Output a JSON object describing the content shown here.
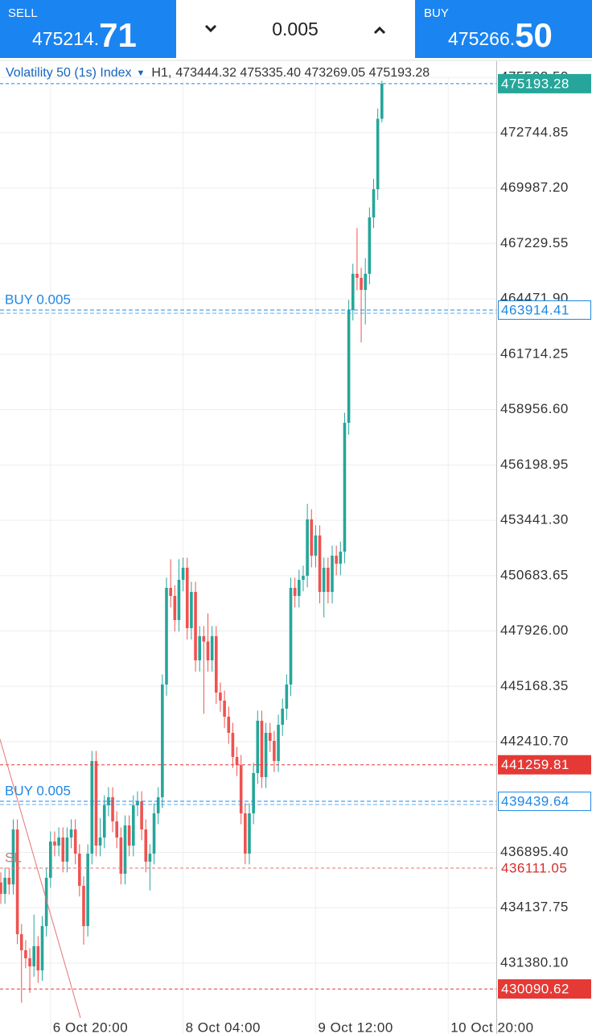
{
  "header": {
    "sell": {
      "label": "SELL",
      "price_main": "475214.",
      "price_decimals": "71"
    },
    "volume": "0.005",
    "buy": {
      "label": "BUY",
      "price_main": "475266.",
      "price_decimals": "50"
    }
  },
  "chart_data": {
    "type": "candlestick",
    "title": "Volatility 50 (1s) Index",
    "timeframe": "H1,",
    "ohlc_text": "473444.32 475335.40 473269.05 475193.28",
    "up_color": "#26a69a",
    "down_color": "#ef5350",
    "grid": true,
    "ylim": [
      428730,
      475510
    ],
    "yticks": [
      {
        "value": 475502.5,
        "label": "475502.50"
      },
      472744.85,
      {
        "value": 469987.2,
        "label": "469987.20"
      },
      467229.55,
      {
        "value": 464471.9,
        "label": "464471.90"
      },
      461714.25,
      {
        "value": 458956.6,
        "label": "458956.60"
      },
      456198.95,
      {
        "value": 453441.3,
        "label": "453441.30"
      },
      450683.65,
      {
        "value": 447926,
        "label": "447926.00"
      },
      445168.35,
      {
        "value": 442410.7,
        "label": "442410.70"
      },
      {
        "value": 436895.4,
        "label": "436895.40"
      },
      434137.75,
      {
        "value": 431380.1,
        "label": "431380.10"
      }
    ],
    "levels": [
      {
        "price": 475193.28,
        "color": "#26a69a",
        "line_color": "#1e88e5",
        "box": "filled"
      },
      {
        "label": "BUY 0.005",
        "price": 463914.41,
        "color": "#1e88e5",
        "line_color": "#1e88e5",
        "box": "outline"
      },
      {
        "price": 441259.81,
        "color": "#e53935",
        "line_color": "#e53935",
        "box": "filled"
      },
      {
        "label": "BUY 0.005",
        "price": 439439.64,
        "color": "#1e88e5",
        "line_color": "#1e88e5",
        "box": "outline"
      },
      {
        "label": "SL",
        "price": 436111.05,
        "color": "#d32f2f",
        "line_color": "#e57373",
        "box": "none"
      },
      {
        "price": 430090.62,
        "color": "#e53935",
        "line_color": "#e53935",
        "box": "filled"
      }
    ],
    "categories": [
      null,
      null,
      null,
      null,
      null,
      null,
      null,
      null,
      null,
      null,
      null,
      null,
      "6 Oct 20:00",
      null,
      null,
      null,
      null,
      null,
      null,
      null,
      null,
      null,
      null,
      null,
      null,
      null,
      null,
      null,
      null,
      null,
      null,
      null,
      null,
      null,
      null,
      null,
      null,
      null,
      null,
      null,
      null,
      null,
      null,
      null,
      "8 Oct 04:00",
      null,
      null,
      null,
      null,
      null,
      null,
      null,
      null,
      null,
      null,
      null,
      null,
      null,
      null,
      null,
      null,
      null,
      null,
      null,
      null,
      null,
      null,
      null,
      null,
      null,
      null,
      null,
      null,
      null,
      null,
      null,
      "9 Oct 12:00",
      null,
      null,
      null,
      null,
      null,
      null,
      null,
      null,
      null,
      null,
      null,
      null,
      null,
      null,
      null,
      null,
      null,
      null,
      null,
      null,
      null,
      null,
      null,
      null,
      null,
      null,
      null,
      null,
      null,
      null,
      null,
      "10 Oct 20:00",
      null,
      null,
      null,
      null,
      null,
      null,
      null,
      null,
      null,
      null,
      null
    ],
    "open": [
      435400,
      434828,
      435631,
      435300,
      438038,
      432820,
      432020,
      431619,
      431217,
      432220,
      431017,
      433223,
      435631,
      437436,
      437235,
      437637,
      436433,
      437637,
      438038,
      436834,
      435229,
      433223,
      436834,
      441448,
      437235,
      437637,
      439241,
      439643,
      438439,
      437637,
      435831,
      438238,
      437235,
      439241,
      439442,
      438038,
      436433,
      436834,
      438840,
      439643,
      445259,
      450074,
      449673,
      448469,
      450475,
      451077,
      448068,
      449873,
      446463,
      447667,
      447400,
      446463,
      447667,
      444858,
      444457,
      443655,
      442852,
      441649,
      441247,
      438840,
      436834,
      438840,
      440846,
      443454,
      440646,
      442852,
      442451,
      441448,
      443253,
      444056,
      445259,
      450074,
      449673,
      450475,
      450676,
      453484,
      451679,
      452682,
      449873,
      451077,
      449873,
      451679,
      451279,
      451879,
      458298,
      463915,
      465721,
      465520,
      464918,
      465721,
      468529,
      469933,
      473444.32,
      null,
      null,
      null,
      null,
      null,
      null,
      null,
      null,
      null,
      null,
      null,
      null,
      null,
      null,
      null,
      null,
      null,
      null,
      null,
      null,
      null,
      null,
      null,
      null,
      null,
      null,
      null
    ],
    "high": [
      435900,
      436130,
      436130,
      438540,
      438540,
      433320,
      432520,
      432120,
      433800,
      432720,
      433720,
      436130,
      437940,
      437940,
      438140,
      438140,
      438140,
      438540,
      438540,
      437300,
      435700,
      437300,
      441950,
      441950,
      438600,
      439740,
      440140,
      440140,
      438940,
      438140,
      438740,
      438740,
      439740,
      439940,
      439940,
      438540,
      437300,
      439340,
      440140,
      445760,
      450580,
      451500,
      450200,
      451500,
      451580,
      451580,
      450380,
      450380,
      448170,
      448170,
      448800,
      448170,
      448170,
      445360,
      444960,
      444160,
      443350,
      442150,
      441750,
      439340,
      439340,
      441350,
      443960,
      443960,
      443350,
      443350,
      442950,
      443760,
      444560,
      445760,
      450580,
      450580,
      450980,
      451180,
      454260,
      453990,
      453190,
      453190,
      451580,
      451580,
      452180,
      452180,
      452380,
      458800,
      464420,
      466220,
      468000,
      466020,
      466500,
      469030,
      470440,
      473950,
      475335.4,
      null,
      null,
      null,
      null,
      null,
      null,
      null,
      null,
      null,
      null,
      null,
      null,
      null,
      null,
      null,
      null,
      null,
      null,
      null,
      null,
      null,
      null,
      null,
      null,
      null,
      null,
      null
    ],
    "low": [
      434330,
      434330,
      434800,
      434800,
      432320,
      429400,
      431120,
      429900,
      430700,
      430400,
      430500,
      432700,
      435130,
      436700,
      436700,
      435900,
      435900,
      437100,
      436300,
      434700,
      432300,
      432700,
      436300,
      436700,
      436700,
      437100,
      438700,
      437900,
      437100,
      435300,
      435300,
      436700,
      436700,
      438700,
      437500,
      435900,
      435000,
      436300,
      438300,
      439100,
      444700,
      449100,
      447900,
      447900,
      449900,
      447500,
      447500,
      445900,
      445900,
      443800,
      445900,
      445900,
      444300,
      443900,
      443100,
      442300,
      441100,
      440700,
      438300,
      436300,
      436300,
      438300,
      440300,
      440100,
      440100,
      441900,
      440900,
      440900,
      442700,
      443500,
      444700,
      449100,
      449100,
      449900,
      450100,
      451100,
      451100,
      449300,
      448600,
      449300,
      449300,
      450700,
      450700,
      451300,
      457700,
      463400,
      464900,
      462300,
      463200,
      465200,
      468000,
      469400,
      473269.05,
      null,
      null,
      null,
      null,
      null,
      null,
      null,
      null,
      null,
      null,
      null,
      null,
      null,
      null,
      null,
      null,
      null,
      null,
      null,
      null,
      null,
      null,
      null,
      null,
      null,
      null,
      null
    ],
    "close": [
      434828,
      435631,
      435300,
      438038,
      432820,
      432020,
      431619,
      431217,
      432220,
      431017,
      433223,
      435631,
      437436,
      437235,
      437637,
      436433,
      437637,
      438038,
      436834,
      435229,
      433223,
      436834,
      441448,
      437235,
      437637,
      439241,
      439643,
      438439,
      437637,
      435831,
      438238,
      437235,
      439241,
      439442,
      438038,
      436433,
      436834,
      438840,
      439643,
      445259,
      450074,
      449673,
      448469,
      450475,
      451077,
      448068,
      449873,
      446463,
      447667,
      447400,
      446463,
      447667,
      444858,
      444457,
      443655,
      442852,
      441649,
      441247,
      438840,
      436834,
      438840,
      440846,
      443454,
      440646,
      442852,
      442451,
      441448,
      443253,
      444056,
      445259,
      450074,
      449673,
      450475,
      450676,
      453484,
      451679,
      452682,
      449873,
      451077,
      449873,
      451679,
      451279,
      451879,
      458298,
      463915,
      465721,
      465520,
      464918,
      465721,
      468529,
      469933,
      473444.32,
      475193.28,
      null,
      null,
      null,
      null,
      null,
      null,
      null,
      null,
      null,
      null,
      null,
      null,
      null,
      null,
      null,
      null,
      null,
      null,
      null,
      null,
      null,
      null,
      null,
      null,
      null,
      null,
      null
    ]
  }
}
